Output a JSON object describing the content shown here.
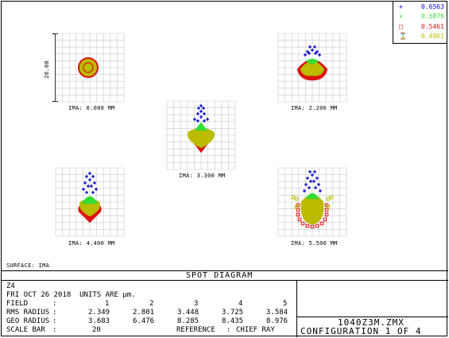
{
  "legend": [
    {
      "symbol": "+",
      "label": "0.6563",
      "color": "#0000cc"
    },
    {
      "symbol": "×",
      "label": "0.5876",
      "color": "#33dd33"
    },
    {
      "symbol": "□",
      "label": "0.5461",
      "color": "#dd1111"
    },
    {
      "symbol": "⌛",
      "label": "0.4861",
      "color": "#bbbb00"
    }
  ],
  "scale_label": "20.00",
  "fields": [
    {
      "label": "IMA: 0.000 MM"
    },
    {
      "label": "IMA: 2.200 MM"
    },
    {
      "label": "IMA: 3.300 MM"
    },
    {
      "label": "IMA: 4.400 MM"
    },
    {
      "label": "IMA: 5.500 MM"
    }
  ],
  "surface_label": "SURFACE: IMA",
  "footer": {
    "title": "SPOT DIAGRAM",
    "lens": "Z4",
    "date_line": "FRI OCT 26 2018  UNITS ARE µm.",
    "field_row": {
      "label": "FIELD",
      "sep": ":",
      "values": [
        "1",
        "2",
        "3",
        "4",
        "5"
      ]
    },
    "rms_row": {
      "label": "RMS RADIUS",
      "sep": ":",
      "values": [
        "2.349",
        "2.801",
        "3.448",
        "3.725",
        "3.584"
      ]
    },
    "geo_row": {
      "label": "GEO RADIUS",
      "sep": ":",
      "values": [
        "3.683",
        "6.476",
        "8.285",
        "8.435",
        "8.976"
      ]
    },
    "scale_row": {
      "label": "SCALE BAR",
      "sep": ":",
      "value": "20",
      "ref_label": "REFERENCE",
      "ref_sep": ":",
      "ref_value": "CHIEF RAY"
    },
    "filename": "1040Z3M.ZMX",
    "config": "CONFIGURATION 1 OF 4"
  }
}
